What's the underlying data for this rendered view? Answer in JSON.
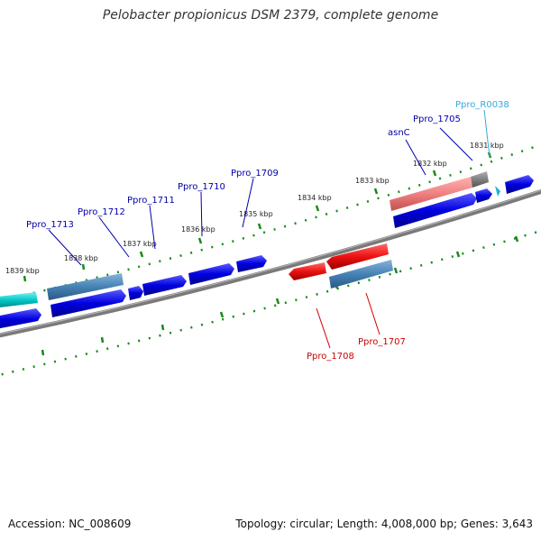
{
  "title": "Pelobacter propionicus DSM 2379, complete genome",
  "footer": {
    "accession": "Accession: NC_008609",
    "summary": "Topology: circular; Length: 4,008,000 bp; Genes: 3,643"
  },
  "colors": {
    "backbone": "#808080",
    "tick": "#1a8a1a",
    "gene_plus": "#0000e0",
    "gene_minus": "#ee1111",
    "pseudo": "#4682b4",
    "rna": "#00c8c8",
    "rna_label": "#33aadd",
    "highlight": "#f08080"
  },
  "kbp_labels": [
    "1831 kbp",
    "1832 kbp",
    "1833 kbp",
    "1834 kbp",
    "1835 kbp",
    "1836 kbp",
    "1837 kbp",
    "1838 kbp",
    "1839 kbp"
  ],
  "gene_labels": {
    "ppro_r0038": "Ppro_R0038",
    "ppro_1705": "Ppro_1705",
    "asnc": "asnC",
    "ppro_1709": "Ppro_1709",
    "ppro_1710": "Ppro_1710",
    "ppro_1711": "Ppro_1711",
    "ppro_1712": "Ppro_1712",
    "ppro_1713": "Ppro_1713",
    "ppro_1708": "Ppro_1708",
    "ppro_1707": "Ppro_1707"
  }
}
